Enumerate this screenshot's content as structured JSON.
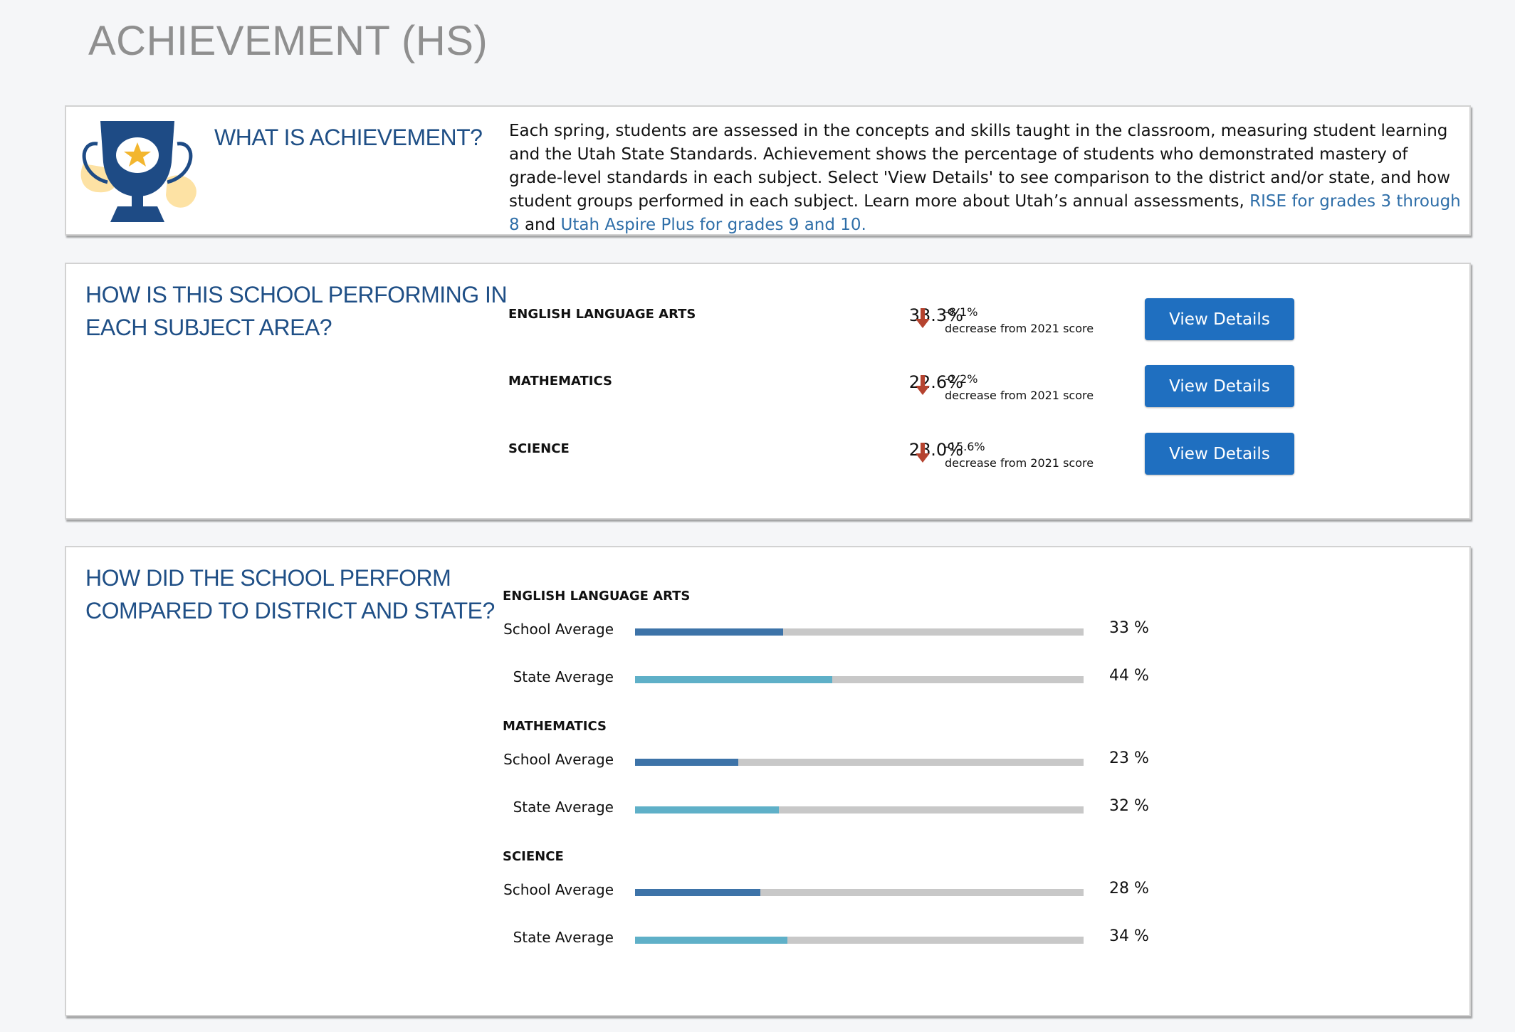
{
  "page": {
    "title": "ACHIEVEMENT (HS)"
  },
  "about": {
    "heading": "WHAT IS ACHIEVEMENT?",
    "text": "Each spring, students are assessed in the concepts and skills taught in the classroom, measuring student learning and the Utah State Standards. Achievement shows the percentage of students who demonstrated mastery of grade-level standards in each subject. Select 'View Details' to see comparison to the district and/or state, and how student groups performed in each subject. Learn more about Utah’s annual assessments, ",
    "link1": "RISE for grades 3 through 8",
    "connector": " and ",
    "link2": "Utah Aspire Plus for grades 9 and 10.",
    "icon": "trophy-star-icon"
  },
  "performance": {
    "heading_line1": "HOW IS THIS SCHOOL PERFORMING IN",
    "heading_line2": "EACH SUBJECT AREA?",
    "rows": [
      {
        "subject": "ENGLISH LANGUAGE ARTS",
        "value": "33.3%",
        "change": "-8.1%",
        "change_text": "decrease from 2021 score",
        "button": "View Details",
        "icon": "arrow-down-icon"
      },
      {
        "subject": "MATHEMATICS",
        "value": "22.6%",
        "change": "-2.2%",
        "change_text": "decrease from 2021 score",
        "button": "View Details",
        "icon": "arrow-down-icon"
      },
      {
        "subject": "SCIENCE",
        "value": "28.0%",
        "change": "-15.6%",
        "change_text": "decrease from 2021 score",
        "button": "View Details",
        "icon": "arrow-down-icon"
      }
    ]
  },
  "comparison": {
    "heading_line1": "HOW DID THE SCHOOL PERFORM",
    "heading_line2": "COMPARED TO DISTRICT AND STATE?",
    "groups": [
      {
        "subject": "ENGLISH LANGUAGE ARTS",
        "bars": [
          {
            "label": "School Average",
            "value": 33,
            "display": "33 %"
          },
          {
            "label": "State Average",
            "value": 44,
            "display": "44 %"
          }
        ]
      },
      {
        "subject": "MATHEMATICS",
        "bars": [
          {
            "label": "School Average",
            "value": 23,
            "display": "23 %"
          },
          {
            "label": "State Average",
            "value": 32,
            "display": "32 %"
          }
        ]
      },
      {
        "subject": "SCIENCE",
        "bars": [
          {
            "label": "School Average",
            "value": 28,
            "display": "28 %"
          },
          {
            "label": "State Average",
            "value": 34,
            "display": "34 %"
          }
        ]
      }
    ]
  },
  "colors": {
    "heading": "#1f4f86",
    "button": "#1f6fc0",
    "school_bar": "#3d73a8",
    "state_bar": "#5fb0c8",
    "track": "#c8c8c8",
    "arrow": "#b5432f",
    "title": "#8f8f8f"
  }
}
